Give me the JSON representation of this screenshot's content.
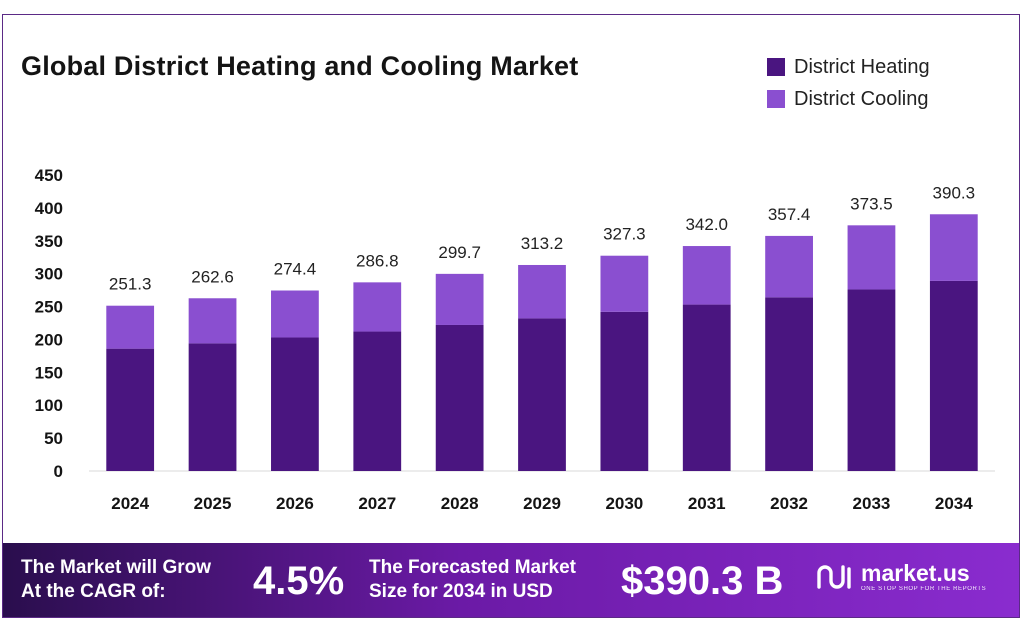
{
  "chart_data": {
    "type": "bar",
    "stacked": true,
    "title": "Global District Heating and Cooling Market",
    "xlabel": "",
    "ylabel": "",
    "ylim": [
      0,
      450
    ],
    "yticks": [
      "0",
      "50",
      "100",
      "150",
      "200",
      "250",
      "300",
      "350",
      "400",
      "450"
    ],
    "categories": [
      "2024",
      "2025",
      "2026",
      "2027",
      "2028",
      "2029",
      "2030",
      "2031",
      "2032",
      "2033",
      "2034"
    ],
    "series": [
      {
        "name": "District Heating",
        "color": "#4a1580",
        "values": [
          186,
          194,
          203,
          212,
          222,
          232,
          242,
          253,
          264,
          276,
          289
        ]
      },
      {
        "name": "District Cooling",
        "color": "#8a4fd0",
        "values": [
          65.3,
          68.6,
          71.4,
          74.8,
          77.7,
          81.2,
          85.3,
          89.0,
          93.4,
          97.5,
          101.3
        ]
      }
    ],
    "totals": [
      "251.3",
      "262.6",
      "274.4",
      "286.8",
      "299.7",
      "313.2",
      "327.3",
      "342.0",
      "357.4",
      "373.5",
      "390.3"
    ],
    "legend_position": "top-right",
    "grid": false
  },
  "banner": {
    "cagr_line1": "The Market will Grow",
    "cagr_line2": "At the CAGR of:",
    "cagr_value": "4.5%",
    "forecast_line1": "The Forecasted Market",
    "forecast_line2": "Size for 2034 in USD",
    "forecast_value": "$390.3 B",
    "logo_icon": "market-us-logo-icon",
    "brand_name": "market.us",
    "brand_tagline": "ONE STOP SHOP FOR THE REPORTS"
  }
}
